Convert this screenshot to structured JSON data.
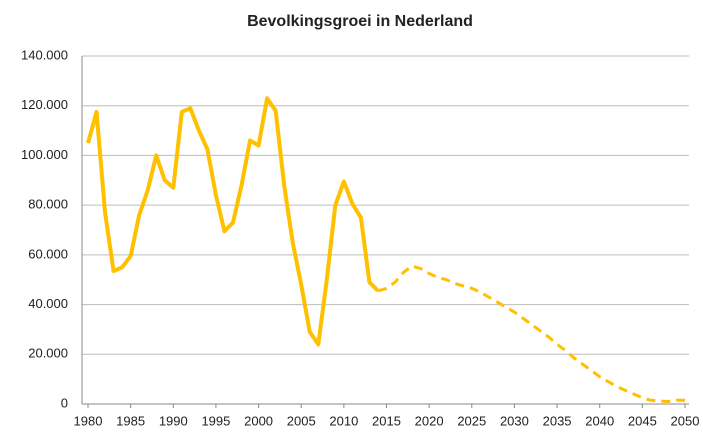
{
  "chart_data": {
    "type": "line",
    "title": "Bevolkingsgroei in Nederland",
    "x": [
      1980,
      1981,
      1982,
      1983,
      1984,
      1985,
      1986,
      1987,
      1988,
      1989,
      1990,
      1991,
      1992,
      1993,
      1994,
      1995,
      1996,
      1997,
      1998,
      1999,
      2000,
      2001,
      2002,
      2003,
      2004,
      2005,
      2006,
      2007,
      2008,
      2009,
      2010,
      2011,
      2012,
      2013,
      2014,
      2015,
      2016,
      2017,
      2018,
      2019,
      2020,
      2021,
      2022,
      2023,
      2024,
      2025,
      2026,
      2027,
      2028,
      2029,
      2030,
      2031,
      2032,
      2033,
      2034,
      2035,
      2036,
      2037,
      2038,
      2039,
      2040,
      2041,
      2042,
      2043,
      2044,
      2045,
      2046,
      2047,
      2048,
      2049,
      2050
    ],
    "series": [
      {
        "color": "#FFC000",
        "style": "solid",
        "values": [
          105000,
          117500,
          77000,
          53500,
          55000,
          59500,
          76000,
          86000,
          100000,
          90000,
          87000,
          117500,
          119000,
          110000,
          102500,
          84000,
          69500,
          73000,
          88000,
          106000,
          104000,
          123000,
          118000,
          88000,
          65000,
          48000,
          29000,
          24000,
          50000,
          80000,
          89500,
          80500,
          75000,
          49000,
          45500,
          null,
          null,
          null,
          null,
          null,
          null,
          null,
          null,
          null,
          null,
          null,
          null,
          null,
          null,
          null,
          null,
          null,
          null,
          null,
          null,
          null,
          null,
          null,
          null,
          null,
          null,
          null,
          null,
          null,
          null,
          null,
          null,
          null,
          null,
          null,
          null
        ]
      },
      {
        "color": "#FFC000",
        "style": "dashed",
        "values": [
          null,
          null,
          null,
          null,
          null,
          null,
          null,
          null,
          null,
          null,
          null,
          null,
          null,
          null,
          null,
          null,
          null,
          null,
          null,
          null,
          null,
          null,
          null,
          null,
          null,
          null,
          null,
          null,
          null,
          null,
          null,
          null,
          null,
          null,
          45500,
          46500,
          49000,
          53000,
          55500,
          54500,
          52500,
          51000,
          50000,
          48500,
          47500,
          46500,
          45000,
          43000,
          41000,
          39000,
          37000,
          34500,
          32000,
          29500,
          27000,
          24000,
          21500,
          18500,
          16000,
          13500,
          11000,
          9000,
          7000,
          5500,
          4000,
          2500,
          1500,
          1200,
          1000,
          1500,
          1500
        ]
      }
    ],
    "xlim": [
      1980,
      2050
    ],
    "xticks": [
      1980,
      1985,
      1990,
      1995,
      2000,
      2005,
      2010,
      2015,
      2020,
      2025,
      2030,
      2035,
      2040,
      2045,
      2050
    ],
    "ylim": [
      0,
      140000
    ],
    "yticks": [
      0,
      {
        "value": 20000,
        "label": "20.000"
      },
      {
        "value": 40000,
        "label": "40.000"
      },
      {
        "value": 60000,
        "label": "60.000"
      },
      {
        "value": 80000,
        "label": "80.000"
      },
      {
        "value": 100000,
        "label": "100.000"
      },
      {
        "value": 120000,
        "label": "120.000"
      },
      {
        "value": 140000,
        "label": "140.000"
      }
    ],
    "grid": true
  }
}
